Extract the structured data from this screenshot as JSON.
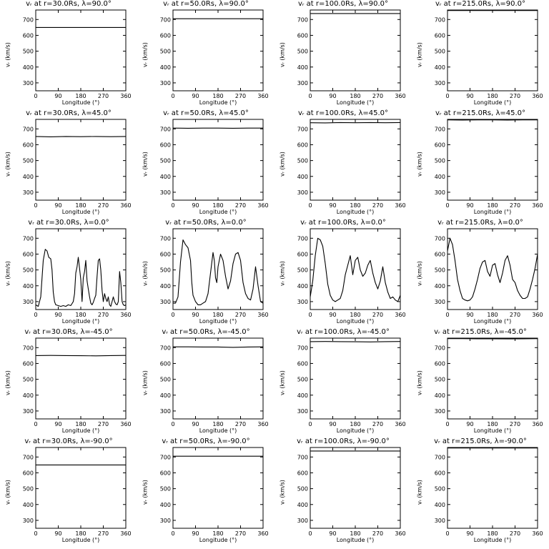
{
  "chart_data": [
    {
      "type": "line",
      "title": "vᵣ at r=30.0Rs, λ=90.0°",
      "ylabel": "vᵣ (km/s)",
      "xlabel": "Longitude (°)",
      "xlim": [
        0,
        360
      ],
      "ylim": [
        250,
        760
      ],
      "xticks": [
        0,
        90,
        180,
        270,
        360
      ],
      "yticks": [
        300,
        400,
        500,
        600,
        700
      ],
      "x": [
        0,
        360
      ],
      "y": [
        650,
        650
      ]
    },
    {
      "type": "line",
      "title": "vᵣ at r=50.0Rs, λ=90.0°",
      "ylabel": "vᵣ (km/s)",
      "xlabel": "Longitude (°)",
      "xlim": [
        0,
        360
      ],
      "ylim": [
        250,
        760
      ],
      "xticks": [
        0,
        90,
        180,
        270,
        360
      ],
      "yticks": [
        300,
        400,
        500,
        600,
        700
      ],
      "x": [
        0,
        360
      ],
      "y": [
        705,
        705
      ]
    },
    {
      "type": "line",
      "title": "vᵣ at r=100.0Rs, λ=90.0°",
      "ylabel": "vᵣ (km/s)",
      "xlabel": "Longitude (°)",
      "xlim": [
        0,
        360
      ],
      "ylim": [
        250,
        760
      ],
      "xticks": [
        0,
        90,
        180,
        270,
        360
      ],
      "yticks": [
        300,
        400,
        500,
        600,
        700
      ],
      "x": [
        0,
        360
      ],
      "y": [
        738,
        738
      ]
    },
    {
      "type": "line",
      "title": "vᵣ at r=215.0Rs, λ=90.0°",
      "ylabel": "vᵣ (km/s)",
      "xlabel": "Longitude (°)",
      "xlim": [
        0,
        360
      ],
      "ylim": [
        250,
        760
      ],
      "xticks": [
        0,
        90,
        180,
        270,
        360
      ],
      "yticks": [
        300,
        400,
        500,
        600,
        700
      ],
      "x": [
        0,
        360
      ],
      "y": [
        757,
        757
      ]
    },
    {
      "type": "line",
      "title": "vᵣ at r=30.0Rs, λ=45.0°",
      "ylabel": "vᵣ (km/s)",
      "xlabel": "Longitude (°)",
      "xlim": [
        0,
        360
      ],
      "ylim": [
        250,
        760
      ],
      "xticks": [
        0,
        90,
        180,
        270,
        360
      ],
      "yticks": [
        300,
        400,
        500,
        600,
        700
      ],
      "x": [
        0,
        60,
        120,
        180,
        240,
        300,
        360
      ],
      "y": [
        652,
        650,
        652,
        651,
        652,
        651,
        652
      ]
    },
    {
      "type": "line",
      "title": "vᵣ at r=50.0Rs, λ=45.0°",
      "ylabel": "vᵣ (km/s)",
      "xlabel": "Longitude (°)",
      "xlim": [
        0,
        360
      ],
      "ylim": [
        250,
        760
      ],
      "xticks": [
        0,
        90,
        180,
        270,
        360
      ],
      "yticks": [
        300,
        400,
        500,
        600,
        700
      ],
      "x": [
        0,
        60,
        120,
        180,
        240,
        300,
        360
      ],
      "y": [
        705,
        704,
        705,
        705,
        704,
        705,
        705
      ]
    },
    {
      "type": "line",
      "title": "vᵣ at r=100.0Rs, λ=45.0°",
      "ylabel": "vᵣ (km/s)",
      "xlabel": "Longitude (°)",
      "xlim": [
        0,
        360
      ],
      "ylim": [
        250,
        760
      ],
      "xticks": [
        0,
        90,
        180,
        270,
        360
      ],
      "yticks": [
        300,
        400,
        500,
        600,
        700
      ],
      "x": [
        0,
        60,
        120,
        180,
        240,
        300,
        360
      ],
      "y": [
        739,
        738,
        740,
        739,
        740,
        739,
        740
      ]
    },
    {
      "type": "line",
      "title": "vᵣ at r=215.0Rs, λ=45.0°",
      "ylabel": "vᵣ (km/s)",
      "xlabel": "Longitude (°)",
      "xlim": [
        0,
        360
      ],
      "ylim": [
        250,
        760
      ],
      "xticks": [
        0,
        90,
        180,
        270,
        360
      ],
      "yticks": [
        300,
        400,
        500,
        600,
        700
      ],
      "x": [
        0,
        60,
        120,
        180,
        240,
        300,
        360
      ],
      "y": [
        757,
        756,
        757,
        757,
        756,
        757,
        757
      ]
    },
    {
      "type": "line",
      "title": "vᵣ at r=30.0Rs, λ=0.0°",
      "ylabel": "vᵣ (km/s)",
      "xlabel": "Longitude (°)",
      "xlim": [
        0,
        360
      ],
      "ylim": [
        250,
        760
      ],
      "xticks": [
        0,
        90,
        180,
        270,
        360
      ],
      "yticks": [
        300,
        400,
        500,
        600,
        700
      ],
      "x": [
        0,
        10,
        20,
        30,
        38,
        45,
        52,
        60,
        65,
        70,
        75,
        80,
        90,
        100,
        110,
        120,
        130,
        140,
        150,
        155,
        160,
        165,
        170,
        175,
        180,
        185,
        190,
        195,
        200,
        205,
        210,
        215,
        220,
        225,
        230,
        235,
        240,
        245,
        250,
        255,
        260,
        265,
        270,
        275,
        280,
        285,
        290,
        295,
        300,
        305,
        310,
        315,
        320,
        325,
        330,
        335,
        340,
        345,
        350,
        355,
        360
      ],
      "y": [
        280,
        270,
        330,
        560,
        630,
        620,
        580,
        570,
        500,
        360,
        300,
        280,
        275,
        270,
        275,
        270,
        280,
        275,
        300,
        350,
        480,
        520,
        580,
        510,
        440,
        300,
        450,
        490,
        560,
        430,
        380,
        330,
        290,
        280,
        295,
        320,
        340,
        460,
        560,
        570,
        500,
        370,
        300,
        350,
        320,
        300,
        330,
        280,
        270,
        300,
        330,
        300,
        285,
        280,
        300,
        490,
        420,
        300,
        280,
        275,
        280
      ]
    },
    {
      "type": "line",
      "title": "vᵣ at r=50.0Rs, λ=0.0°",
      "ylabel": "vᵣ (km/s)",
      "xlabel": "Longitude (°)",
      "xlim": [
        0,
        360
      ],
      "ylim": [
        250,
        760
      ],
      "xticks": [
        0,
        90,
        180,
        270,
        360
      ],
      "yticks": [
        300,
        400,
        500,
        600,
        700
      ],
      "x": [
        0,
        10,
        20,
        30,
        40,
        50,
        60,
        70,
        75,
        80,
        90,
        100,
        110,
        120,
        130,
        140,
        150,
        160,
        165,
        170,
        175,
        180,
        190,
        200,
        210,
        220,
        230,
        240,
        250,
        260,
        270,
        280,
        290,
        300,
        310,
        320,
        330,
        340,
        350,
        360
      ],
      "y": [
        290,
        290,
        330,
        550,
        690,
        660,
        640,
        560,
        420,
        340,
        300,
        280,
        280,
        290,
        300,
        350,
        480,
        610,
        560,
        450,
        420,
        520,
        600,
        560,
        460,
        380,
        430,
        540,
        600,
        610,
        560,
        420,
        350,
        320,
        310,
        380,
        520,
        400,
        300,
        290
      ]
    },
    {
      "type": "line",
      "title": "vᵣ at r=100.0Rs, λ=0.0°",
      "ylabel": "vᵣ (km/s)",
      "xlabel": "Longitude (°)",
      "xlim": [
        0,
        360
      ],
      "ylim": [
        250,
        760
      ],
      "xticks": [
        0,
        90,
        180,
        270,
        360
      ],
      "yticks": [
        300,
        400,
        500,
        600,
        700
      ],
      "x": [
        0,
        10,
        20,
        30,
        40,
        50,
        60,
        70,
        80,
        90,
        100,
        110,
        120,
        130,
        140,
        150,
        160,
        170,
        180,
        190,
        200,
        210,
        220,
        230,
        240,
        250,
        260,
        270,
        280,
        290,
        300,
        310,
        320,
        330,
        340,
        350,
        360
      ],
      "y": [
        330,
        430,
        590,
        700,
        690,
        650,
        540,
        410,
        340,
        310,
        300,
        310,
        320,
        370,
        470,
        530,
        590,
        470,
        560,
        580,
        500,
        460,
        480,
        530,
        560,
        480,
        420,
        380,
        430,
        520,
        420,
        360,
        320,
        330,
        310,
        300,
        340
      ]
    },
    {
      "type": "line",
      "title": "vᵣ at r=215.0Rs, λ=0.0°",
      "ylabel": "vᵣ (km/s)",
      "xlabel": "Longitude (°)",
      "xlim": [
        0,
        360
      ],
      "ylim": [
        250,
        760
      ],
      "xticks": [
        0,
        90,
        180,
        270,
        360
      ],
      "yticks": [
        300,
        400,
        500,
        600,
        700
      ],
      "x": [
        0,
        10,
        20,
        30,
        40,
        50,
        60,
        70,
        80,
        90,
        100,
        110,
        120,
        130,
        140,
        150,
        160,
        170,
        180,
        190,
        200,
        210,
        220,
        230,
        240,
        250,
        260,
        270,
        280,
        290,
        300,
        310,
        320,
        330,
        340,
        350,
        360
      ],
      "y": [
        620,
        700,
        660,
        560,
        440,
        370,
        320,
        310,
        305,
        310,
        330,
        380,
        440,
        510,
        550,
        560,
        490,
        460,
        530,
        540,
        470,
        420,
        480,
        560,
        590,
        530,
        440,
        420,
        370,
        340,
        320,
        320,
        330,
        380,
        440,
        510,
        600
      ]
    },
    {
      "type": "line",
      "title": "vᵣ at r=30.0Rs, λ=-45.0°",
      "ylabel": "vᵣ (km/s)",
      "xlabel": "Longitude (°)",
      "xlim": [
        0,
        360
      ],
      "ylim": [
        250,
        760
      ],
      "xticks": [
        0,
        90,
        180,
        270,
        360
      ],
      "yticks": [
        300,
        400,
        500,
        600,
        700
      ],
      "x": [
        0,
        60,
        120,
        180,
        240,
        300,
        360
      ],
      "y": [
        650,
        651,
        650,
        649,
        648,
        650,
        651
      ]
    },
    {
      "type": "line",
      "title": "vᵣ at r=50.0Rs, λ=-45.0°",
      "ylabel": "vᵣ (km/s)",
      "xlabel": "Longitude (°)",
      "xlim": [
        0,
        360
      ],
      "ylim": [
        250,
        760
      ],
      "xticks": [
        0,
        90,
        180,
        270,
        360
      ],
      "yticks": [
        300,
        400,
        500,
        600,
        700
      ],
      "x": [
        0,
        60,
        120,
        180,
        240,
        300,
        360
      ],
      "y": [
        705,
        705,
        704,
        704,
        702,
        704,
        705
      ]
    },
    {
      "type": "line",
      "title": "vᵣ at r=100.0Rs, λ=-45.0°",
      "ylabel": "vᵣ (km/s)",
      "xlabel": "Longitude (°)",
      "xlim": [
        0,
        360
      ],
      "ylim": [
        250,
        760
      ],
      "xticks": [
        0,
        90,
        180,
        270,
        360
      ],
      "yticks": [
        300,
        400,
        500,
        600,
        700
      ],
      "x": [
        0,
        60,
        120,
        180,
        240,
        300,
        360
      ],
      "y": [
        738,
        739,
        738,
        737,
        736,
        738,
        739
      ]
    },
    {
      "type": "line",
      "title": "vᵣ at r=215.0Rs, λ=-45.0°",
      "ylabel": "vᵣ (km/s)",
      "xlabel": "Longitude (°)",
      "xlim": [
        0,
        360
      ],
      "ylim": [
        250,
        760
      ],
      "xticks": [
        0,
        90,
        180,
        270,
        360
      ],
      "yticks": [
        300,
        400,
        500,
        600,
        700
      ],
      "x": [
        0,
        60,
        120,
        180,
        240,
        300,
        360
      ],
      "y": [
        757,
        757,
        756,
        756,
        755,
        756,
        757
      ]
    },
    {
      "type": "line",
      "title": "vᵣ at r=30.0Rs, λ=-90.0°",
      "ylabel": "vᵣ (km/s)",
      "xlabel": "Longitude (°)",
      "xlim": [
        0,
        360
      ],
      "ylim": [
        250,
        760
      ],
      "xticks": [
        0,
        90,
        180,
        270,
        360
      ],
      "yticks": [
        300,
        400,
        500,
        600,
        700
      ],
      "x": [
        0,
        360
      ],
      "y": [
        650,
        650
      ]
    },
    {
      "type": "line",
      "title": "vᵣ at r=50.0Rs, λ=-90.0°",
      "ylabel": "vᵣ (km/s)",
      "xlabel": "Longitude (°)",
      "xlim": [
        0,
        360
      ],
      "ylim": [
        250,
        760
      ],
      "xticks": [
        0,
        90,
        180,
        270,
        360
      ],
      "yticks": [
        300,
        400,
        500,
        600,
        700
      ],
      "x": [
        0,
        360
      ],
      "y": [
        705,
        705
      ]
    },
    {
      "type": "line",
      "title": "vᵣ at r=100.0Rs, λ=-90.0°",
      "ylabel": "vᵣ (km/s)",
      "xlabel": "Longitude (°)",
      "xlim": [
        0,
        360
      ],
      "ylim": [
        250,
        760
      ],
      "xticks": [
        0,
        90,
        180,
        270,
        360
      ],
      "yticks": [
        300,
        400,
        500,
        600,
        700
      ],
      "x": [
        0,
        360
      ],
      "y": [
        738,
        738
      ]
    },
    {
      "type": "line",
      "title": "vᵣ at r=215.0Rs, λ=-90.0°",
      "ylabel": "vᵣ (km/s)",
      "xlabel": "Longitude (°)",
      "xlim": [
        0,
        360
      ],
      "ylim": [
        250,
        760
      ],
      "xticks": [
        0,
        90,
        180,
        270,
        360
      ],
      "yticks": [
        300,
        400,
        500,
        600,
        700
      ],
      "x": [
        0,
        360
      ],
      "y": [
        757,
        757
      ]
    }
  ]
}
